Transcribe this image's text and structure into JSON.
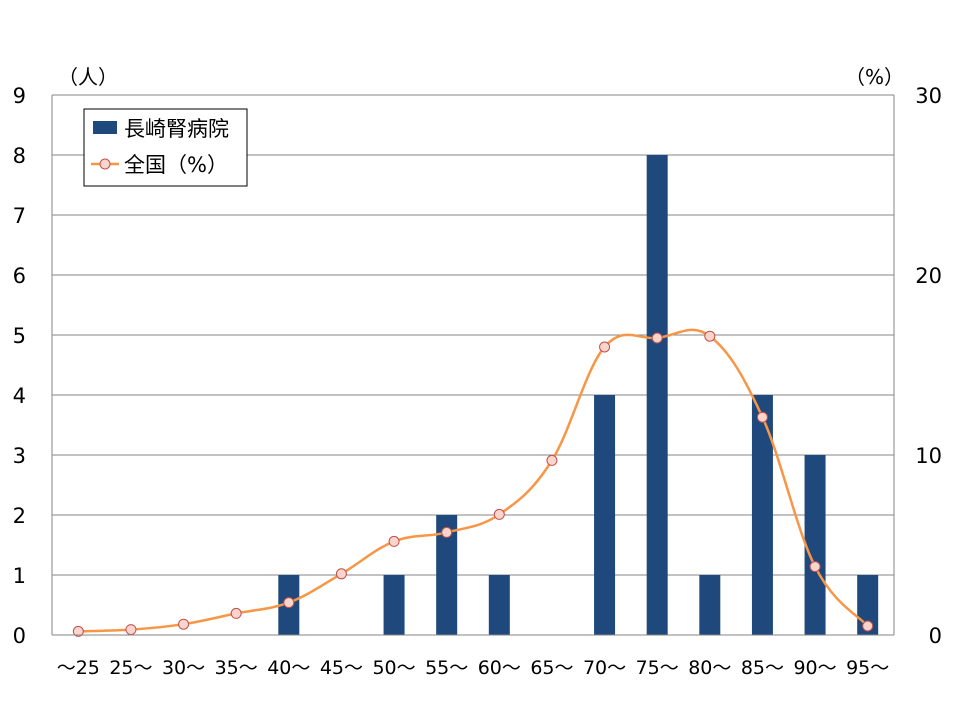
{
  "chart_data": {
    "type": "bar",
    "categories": [
      "～25",
      "25～",
      "30～",
      "35～",
      "40～",
      "45～",
      "50～",
      "55～",
      "60～",
      "65～",
      "70～",
      "75～",
      "80～",
      "85～",
      "90～",
      "95～"
    ],
    "series": [
      {
        "name": "長崎腎病院",
        "type": "bar",
        "axis": "left",
        "color": "#1f497d",
        "values": [
          0,
          0,
          0,
          0,
          1,
          0,
          1,
          2,
          1,
          0,
          4,
          8,
          1,
          4,
          3,
          1
        ]
      },
      {
        "name": "全国（%）",
        "type": "line",
        "axis": "right",
        "color": "#f79646",
        "marker_fill": "#fbd5cc",
        "marker_stroke": "#c0504d",
        "values": [
          0.2,
          0.3,
          0.6,
          1.2,
          1.8,
          3.4,
          5.2,
          5.7,
          6.7,
          9.7,
          16.0,
          16.5,
          16.6,
          12.1,
          3.8,
          0.5
        ]
      }
    ],
    "left_axis": {
      "unit": "（人）",
      "ylim": [
        0,
        9
      ],
      "ticks": [
        "0",
        "1",
        "2",
        "3",
        "4",
        "5",
        "6",
        "7",
        "8",
        "9"
      ]
    },
    "right_axis": {
      "unit": "（%）",
      "ylim": [
        0,
        30
      ],
      "ticks": [
        "0",
        "10",
        "20",
        "30"
      ]
    },
    "grid": true,
    "legend": {
      "position": "top-left",
      "entries": [
        "長崎腎病院",
        "全国（%）"
      ]
    }
  }
}
